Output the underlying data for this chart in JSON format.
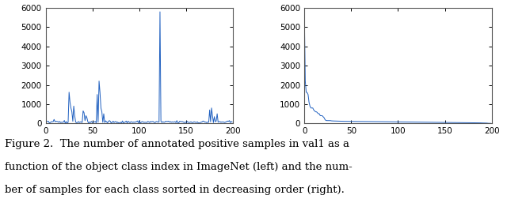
{
  "xlim_left": [
    0,
    200
  ],
  "xlim_right": [
    0,
    200
  ],
  "ylim": [
    0,
    6000
  ],
  "yticks": [
    0,
    1000,
    2000,
    3000,
    4000,
    5000,
    6000
  ],
  "xticks_left": [
    0,
    50,
    100,
    150,
    200
  ],
  "xticks_right": [
    0,
    50,
    100,
    150,
    200
  ],
  "line_color": "#2060C0",
  "bg_color": "#ffffff",
  "caption_line1": "Figure 2.  The number of annotated positive samples in val1 as a",
  "caption_line2": "function of the object class index in ImageNet (left) and the num-",
  "caption_line3": "ber of samples for each class sorted in decreasing order (right).",
  "caption_fontsize": 9.5
}
